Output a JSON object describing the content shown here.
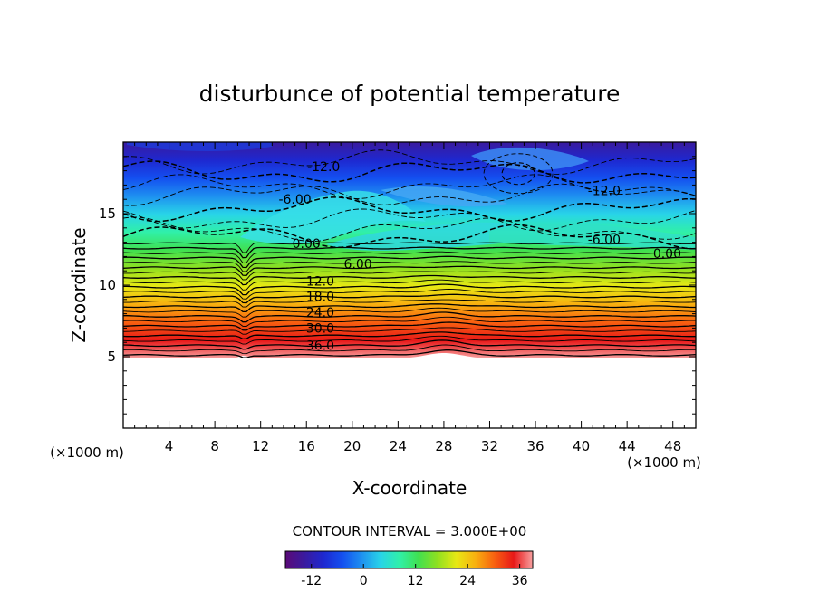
{
  "chart_data": {
    "type": "heatmap",
    "title": "disturbunce of potential temperature",
    "xlabel": "X-coordinate",
    "ylabel": "Z-coordinate",
    "x_unit_note": "(×1000 m)",
    "y_unit_note": "(×1000 m)",
    "xlim": [
      0,
      50
    ],
    "ylim": [
      0,
      20
    ],
    "x_ticks": [
      4,
      8,
      12,
      16,
      20,
      24,
      28,
      32,
      36,
      40,
      44,
      48
    ],
    "y_ticks": [
      5,
      10,
      15
    ],
    "data_zmin": 5,
    "data_zmax": 20,
    "contour_interval_text": "CONTOUR INTERVAL = 3.000E+00",
    "contour_interval": 3.0,
    "colorbar": {
      "min": -18,
      "max": 39,
      "tick_values": [
        -12,
        0,
        12,
        24,
        36
      ],
      "tick_labels": [
        "-12",
        "0",
        "12",
        "24",
        "36"
      ],
      "colors": [
        "#5a0a78",
        "#3a1a9e",
        "#1e28d0",
        "#1450f0",
        "#1e90f0",
        "#28d4e8",
        "#30f0a8",
        "#40e050",
        "#90e020",
        "#e8e814",
        "#f8b010",
        "#f86010",
        "#e81818",
        "#f8a0a0"
      ]
    },
    "contour_labels": [
      {
        "text": "-12.0",
        "x": 17.5,
        "z": 18.3
      },
      {
        "text": "-12.0",
        "x": 42.0,
        "z": 16.6
      },
      {
        "text": "-6.00",
        "x": 15.0,
        "z": 16.0
      },
      {
        "text": "-6.00",
        "x": 42.0,
        "z": 13.2
      },
      {
        "text": "0.00",
        "x": 16.0,
        "z": 12.9
      },
      {
        "text": "0.00",
        "x": 47.5,
        "z": 12.2
      },
      {
        "text": "6.00",
        "x": 20.5,
        "z": 11.5
      },
      {
        "text": "12.0",
        "x": 17.2,
        "z": 10.3
      },
      {
        "text": "18.0",
        "x": 17.2,
        "z": 9.2
      },
      {
        "text": "24.0",
        "x": 17.2,
        "z": 8.1
      },
      {
        "text": "30.0",
        "x": 17.2,
        "z": 7.0
      },
      {
        "text": "36.0",
        "x": 17.2,
        "z": 5.8
      }
    ]
  }
}
